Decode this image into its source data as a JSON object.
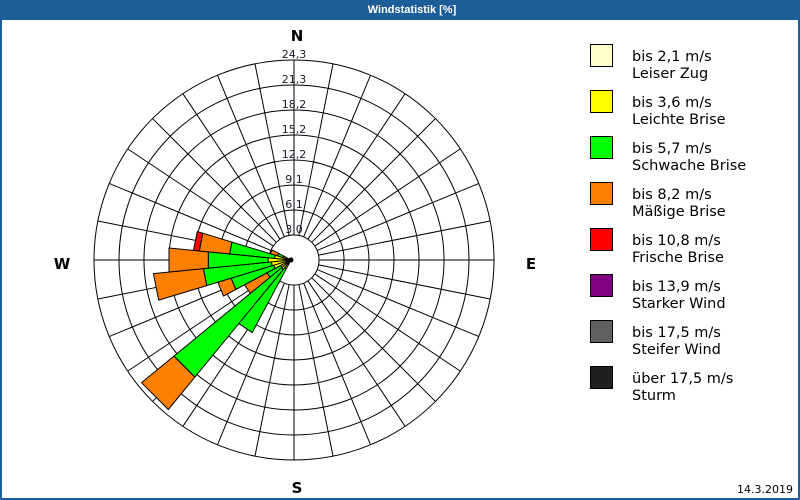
{
  "window": {
    "title": "Windstatistik [%]"
  },
  "compass": {
    "north": "N",
    "east": "E",
    "south": "S",
    "west": "W"
  },
  "legend": {
    "items": [
      {
        "range": "bis 2,1 m/s",
        "label": "Leiser Zug",
        "color": "#ffffcc"
      },
      {
        "range": "bis 3,6 m/s",
        "label": "Leichte Brise",
        "color": "#ffff00"
      },
      {
        "range": "bis 5,7 m/s",
        "label": "Schwache Brise",
        "color": "#00ff00"
      },
      {
        "range": "bis 8,2 m/s",
        "label": "Mäßige Brise",
        "color": "#ff8000"
      },
      {
        "range": "bis 10,8 m/s",
        "label": "Frische Brise",
        "color": "#ff0000"
      },
      {
        "range": "bis 13,9 m/s",
        "label": "Starker Wind",
        "color": "#800080"
      },
      {
        "range": "bis 17,5 m/s",
        "label": "Steifer Wind",
        "color": "#606060"
      },
      {
        "range": "über 17,5 m/s",
        "label": "Sturm",
        "color": "#202020"
      }
    ]
  },
  "footer": {
    "date": "14.3.2019"
  },
  "chart_data": {
    "type": "wind-rose (stacked polar bar)",
    "title": "Windstatistik [%]",
    "unit": "%",
    "sectors": 32,
    "radial_axis": {
      "ticks": [
        3.04,
        6.08,
        9.11,
        12.15,
        15.19,
        18.23,
        21.26,
        24.3
      ],
      "tick_labels": [
        "3,0",
        "6,1",
        "9,1",
        "12,2",
        "15,2",
        "18,2",
        "21,3",
        "24,3"
      ],
      "range": [
        0,
        24.3
      ]
    },
    "angular_labels": {
      "0": "N",
      "90": "E",
      "180": "S",
      "270": "W"
    },
    "categories": [
      213.75,
      225,
      236.25,
      247.5,
      258.75,
      270,
      281.25,
      292.5
    ],
    "category_unit": "compass degrees (clockwise from N)",
    "series": [
      {
        "name": "bis 2,1 m/s (Leiser Zug)",
        "color": "#ffffcc",
        "values": [
          0.2,
          0.2,
          0.2,
          0.3,
          0.3,
          0.4,
          0.3,
          0.2
        ]
      },
      {
        "name": "bis 3,6 m/s (Leichte Brise)",
        "color": "#ffff00",
        "values": [
          1.0,
          1.3,
          1.2,
          1.9,
          2.1,
          2.4,
          1.7,
          0.8
        ]
      },
      {
        "name": "bis 5,7 m/s (Schwache Brise)",
        "color": "#00ff00",
        "values": [
          8.8,
          16.9,
          1.9,
          5.4,
          8.3,
          7.3,
          5.5,
          0.7
        ]
      },
      {
        "name": "bis 8,2 m/s (Mäßige Brise)",
        "color": "#ff8000",
        "values": [
          0,
          5.1,
          3.1,
          1.7,
          6.1,
          4.8,
          3.7,
          0.9
        ]
      },
      {
        "name": "bis 10,8 m/s (Frische Brise)",
        "color": "#ff0000",
        "values": [
          0,
          0,
          0,
          0,
          0,
          0,
          0.7,
          0
        ]
      },
      {
        "name": "bis 13,9 m/s (Starker Wind)",
        "color": "#800080",
        "values": [
          0,
          0,
          0,
          0,
          0,
          0,
          0,
          0
        ]
      },
      {
        "name": "bis 17,5 m/s (Steifer Wind)",
        "color": "#606060",
        "values": [
          0,
          0,
          0,
          0,
          0,
          0,
          0,
          0
        ]
      },
      {
        "name": "über 17,5 m/s (Sturm)",
        "color": "#202020",
        "values": [
          0,
          0,
          0,
          0,
          0,
          0,
          0,
          0
        ]
      }
    ],
    "totals": [
      10.0,
      23.5,
      6.4,
      9.3,
      16.8,
      14.9,
      11.9,
      2.6
    ],
    "grid": true,
    "legend_position": "right"
  }
}
